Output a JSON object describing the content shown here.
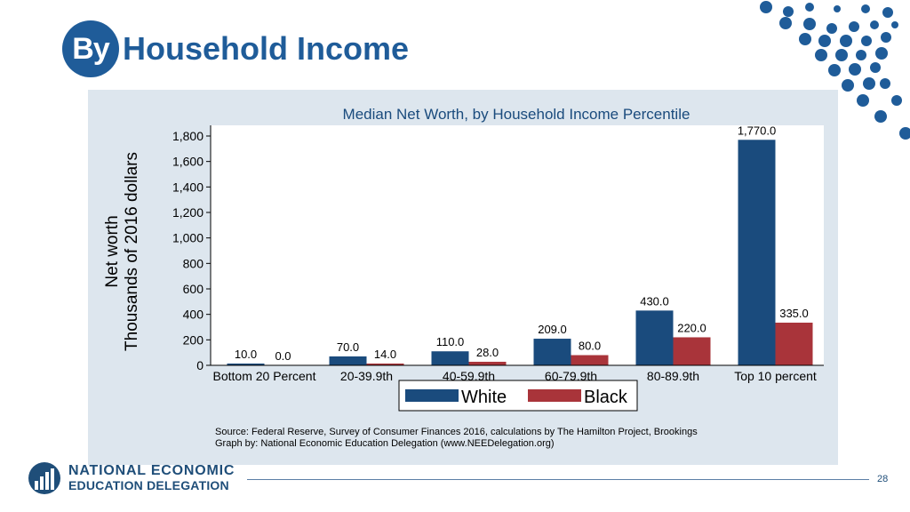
{
  "slide": {
    "title_badge": "By",
    "title": "Household Income",
    "page_number": "28",
    "accent_color": "#1f5c99"
  },
  "footer": {
    "logo_line1": "NATIONAL ECONOMIC",
    "logo_line2": "EDUCATION DELEGATION"
  },
  "chart_data": {
    "type": "bar",
    "title": "Median Net Worth, by Household Income Percentile",
    "ylabel_line1": "Net worth",
    "ylabel_line2": "Thousands of 2016 dollars",
    "xlabel": "",
    "ylim": [
      0,
      1800
    ],
    "yticks": [
      "0",
      "200",
      "400",
      "600",
      "800",
      "1,000",
      "1,200",
      "1,400",
      "1,600",
      "1,800"
    ],
    "categories": [
      "Bottom 20 Percent",
      "20-39.9th",
      "40-59.9th",
      "60-79.9th",
      "80-89.9th",
      "Top 10 percent"
    ],
    "series": [
      {
        "name": "White",
        "color": "#1a4b7d",
        "values": [
          10.0,
          70.0,
          110.0,
          209.0,
          430.0,
          1770.0
        ],
        "labels": [
          "10.0",
          "70.0",
          "110.0",
          "209.0",
          "430.0",
          "1,770.0"
        ]
      },
      {
        "name": "Black",
        "color": "#a9343a",
        "values": [
          0.0,
          14.0,
          28.0,
          80.0,
          220.0,
          335.0
        ],
        "labels": [
          "0.0",
          "14.0",
          "28.0",
          "80.0",
          "220.0",
          "335.0"
        ]
      }
    ],
    "legend_position": "bottom-center",
    "grid": false,
    "source_line1": "Source: Federal Reserve, Survey of Consumer Finances 2016, calculations by The Hamilton Project, Brookings",
    "source_line2": "Graph by: National Economic Education Delegation (www.NEEDelegation.org)"
  }
}
